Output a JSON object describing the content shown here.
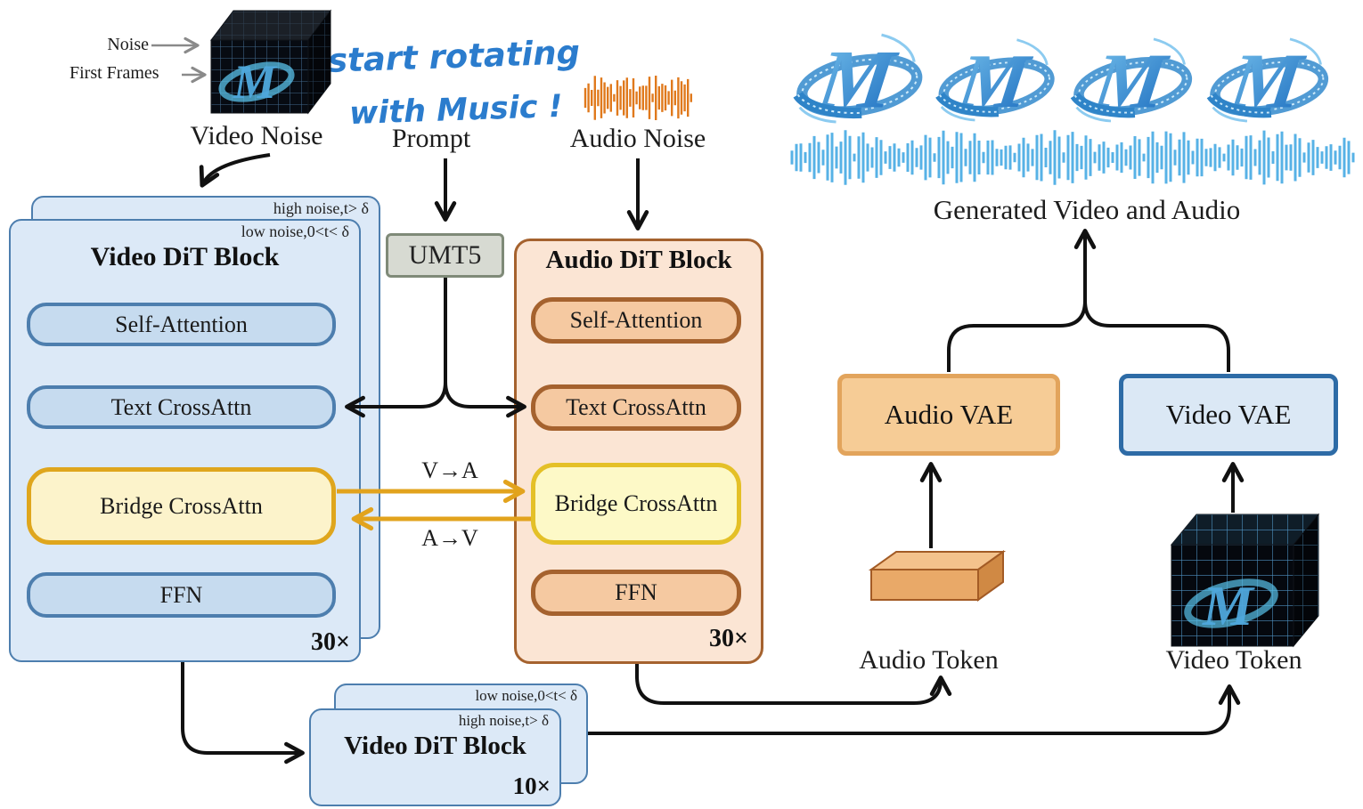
{
  "diagram": {
    "inputs": {
      "noise": "Noise",
      "first_frames": "First Frames",
      "video_noise": "Video Noise",
      "prompt": "Prompt",
      "audio_noise": "Audio Noise"
    },
    "tagline": {
      "line1": "start rotating",
      "line2": "with Music !"
    },
    "text_encoder": "UMT5",
    "video_dit": {
      "back_tag": "high noise,t> δ",
      "front_tag": "low noise,0<t< δ",
      "title": "Video DiT Block",
      "repeat": "30×",
      "layers": [
        "Self-Attention",
        "Text CrossAttn",
        "Bridge CrossAttn",
        "FFN"
      ]
    },
    "audio_dit": {
      "title": "Audio DiT Block",
      "repeat": "30×",
      "layers": [
        "Self-Attention",
        "Text CrossAttn",
        "Bridge CrossAttn",
        "FFN"
      ]
    },
    "bridge": {
      "v_to_a": "V→A",
      "a_to_v": "A→V"
    },
    "refiner_dit": {
      "back_tag": "low noise,0<t< δ",
      "front_tag": "high noise,t> δ",
      "title": "Video DiT Block",
      "repeat": "10×"
    },
    "vae": {
      "audio": "Audio VAE",
      "video": "Video VAE"
    },
    "tokens": {
      "audio": "Audio Token",
      "video": "Video Token"
    },
    "output_label": "Generated Video and Audio",
    "colors": {
      "video_card_fill": "#dce9f7",
      "video_border": "#4d7eae",
      "video_inner_fill": "#c6dbef",
      "audio_card_fill": "#fbe5d4",
      "audio_border": "#a5622e",
      "audio_inner_fill": "#f5c9a1",
      "bridge_fill": "#fcf3cb",
      "bridge_border": "#dfa61d",
      "umt5_fill": "#d7dad2",
      "umt5_border": "#7f8a78",
      "audio_vae_fill": "#f6cc96",
      "audio_vae_border": "#e2a45c",
      "video_vae_fill": "#dbe8f5",
      "video_vae_border": "#2d6ba6",
      "tagline_blue": "#2b7ccd",
      "waveform_orange": "#e0791c",
      "waveform_blue": "#57b2e6",
      "arrow_black": "#111111",
      "arrow_gold": "#e2a31d",
      "arrow_gray": "#8a8a8a"
    }
  }
}
